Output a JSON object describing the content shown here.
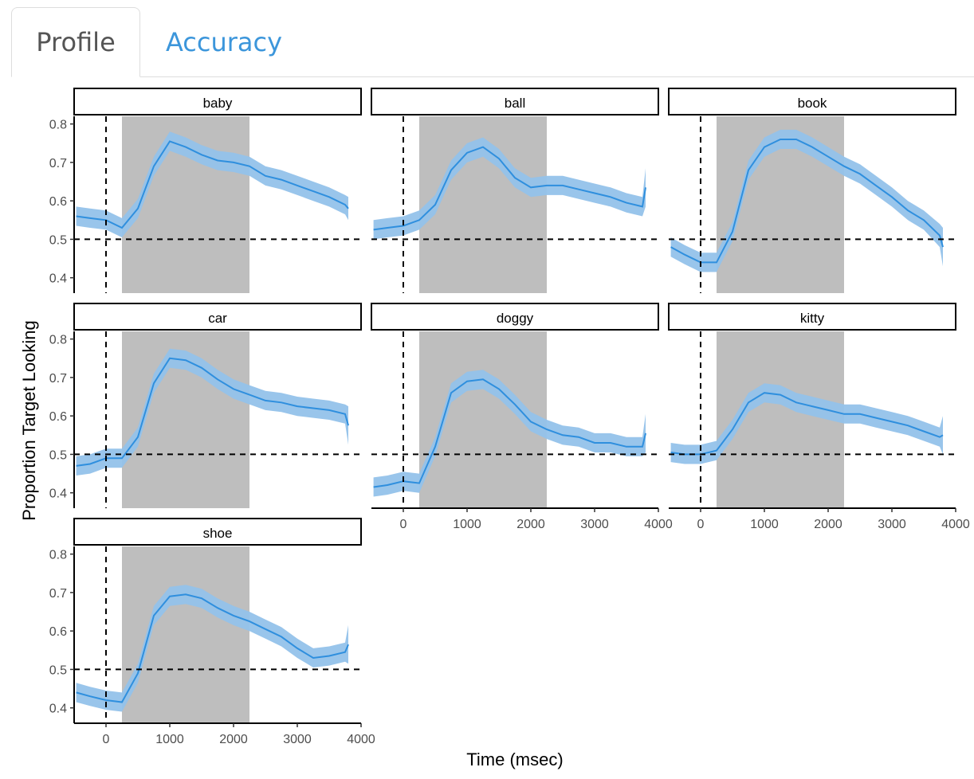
{
  "tabs": [
    {
      "label": "Profile",
      "active": true
    },
    {
      "label": "Accuracy",
      "active": false
    }
  ],
  "colors": {
    "ribbon": "#94c2ea",
    "line": "#2f8fde",
    "window": "#bebebe",
    "tab_link": "#3c96db"
  },
  "chart_data": {
    "type": "line",
    "facets": [
      "baby",
      "ball",
      "book",
      "car",
      "doggy",
      "kitty",
      "shoe"
    ],
    "xlabel": "Time (msec)",
    "ylabel": "Proportion Target Looking",
    "xlim": [
      -500,
      4000
    ],
    "ylim": [
      0.36,
      0.82
    ],
    "x_ticks": [
      0,
      1000,
      2000,
      3000,
      4000
    ],
    "y_ticks": [
      0.4,
      0.5,
      0.6,
      0.7,
      0.8
    ],
    "reference_lines": {
      "x": 0,
      "y": 0.5
    },
    "shaded_window": [
      250,
      2250
    ],
    "x": [
      -467,
      -250,
      0,
      250,
      500,
      750,
      1000,
      1250,
      1500,
      1750,
      2000,
      2250,
      2500,
      2750,
      3000,
      3250,
      3500,
      3750,
      3800
    ],
    "series": [
      {
        "name": "baby",
        "values": [
          0.56,
          0.555,
          0.55,
          0.53,
          0.58,
          0.69,
          0.755,
          0.74,
          0.72,
          0.705,
          0.7,
          0.69,
          0.665,
          0.655,
          0.64,
          0.625,
          0.61,
          0.59,
          0.58
        ],
        "error": [
          0.025,
          0.025,
          0.025,
          0.025,
          0.025,
          0.025,
          0.025,
          0.025,
          0.025,
          0.025,
          0.025,
          0.025,
          0.025,
          0.025,
          0.025,
          0.025,
          0.025,
          0.025,
          0.03
        ]
      },
      {
        "name": "ball",
        "values": [
          0.525,
          0.53,
          0.535,
          0.55,
          0.59,
          0.68,
          0.725,
          0.74,
          0.71,
          0.66,
          0.635,
          0.64,
          0.64,
          0.63,
          0.62,
          0.61,
          0.595,
          0.585,
          0.635
        ],
        "error": [
          0.025,
          0.025,
          0.025,
          0.025,
          0.025,
          0.025,
          0.025,
          0.025,
          0.025,
          0.025,
          0.025,
          0.025,
          0.025,
          0.025,
          0.025,
          0.025,
          0.025,
          0.025,
          0.05
        ]
      },
      {
        "name": "book",
        "values": [
          0.48,
          0.46,
          0.44,
          0.44,
          0.52,
          0.68,
          0.74,
          0.76,
          0.76,
          0.74,
          0.715,
          0.69,
          0.67,
          0.64,
          0.61,
          0.575,
          0.55,
          0.51,
          0.48
        ],
        "error": [
          0.025,
          0.025,
          0.025,
          0.025,
          0.025,
          0.025,
          0.025,
          0.025,
          0.025,
          0.025,
          0.025,
          0.025,
          0.025,
          0.025,
          0.025,
          0.025,
          0.025,
          0.03,
          0.05
        ]
      },
      {
        "name": "car",
        "values": [
          0.47,
          0.475,
          0.49,
          0.49,
          0.545,
          0.685,
          0.75,
          0.745,
          0.725,
          0.695,
          0.67,
          0.655,
          0.64,
          0.635,
          0.625,
          0.62,
          0.615,
          0.605,
          0.575
        ],
        "error": [
          0.025,
          0.025,
          0.025,
          0.025,
          0.025,
          0.025,
          0.025,
          0.025,
          0.025,
          0.025,
          0.025,
          0.025,
          0.025,
          0.025,
          0.025,
          0.025,
          0.025,
          0.025,
          0.05
        ]
      },
      {
        "name": "doggy",
        "values": [
          0.415,
          0.42,
          0.43,
          0.425,
          0.52,
          0.66,
          0.69,
          0.695,
          0.67,
          0.63,
          0.585,
          0.565,
          0.55,
          0.545,
          0.53,
          0.53,
          0.52,
          0.52,
          0.555
        ],
        "error": [
          0.025,
          0.025,
          0.025,
          0.025,
          0.025,
          0.025,
          0.025,
          0.025,
          0.025,
          0.025,
          0.025,
          0.025,
          0.025,
          0.025,
          0.025,
          0.025,
          0.025,
          0.025,
          0.05
        ]
      },
      {
        "name": "kitty",
        "values": [
          0.505,
          0.5,
          0.5,
          0.51,
          0.565,
          0.635,
          0.66,
          0.655,
          0.635,
          0.625,
          0.615,
          0.605,
          0.605,
          0.595,
          0.585,
          0.575,
          0.56,
          0.545,
          0.55
        ],
        "error": [
          0.025,
          0.025,
          0.025,
          0.025,
          0.025,
          0.025,
          0.025,
          0.025,
          0.025,
          0.025,
          0.025,
          0.025,
          0.025,
          0.025,
          0.025,
          0.025,
          0.025,
          0.025,
          0.05
        ]
      },
      {
        "name": "shoe",
        "values": [
          0.44,
          0.43,
          0.42,
          0.415,
          0.49,
          0.64,
          0.69,
          0.695,
          0.685,
          0.66,
          0.64,
          0.625,
          0.605,
          0.585,
          0.555,
          0.53,
          0.535,
          0.545,
          0.565
        ],
        "error": [
          0.025,
          0.025,
          0.025,
          0.025,
          0.025,
          0.025,
          0.025,
          0.025,
          0.025,
          0.025,
          0.025,
          0.025,
          0.025,
          0.025,
          0.025,
          0.025,
          0.025,
          0.025,
          0.05
        ]
      }
    ]
  }
}
